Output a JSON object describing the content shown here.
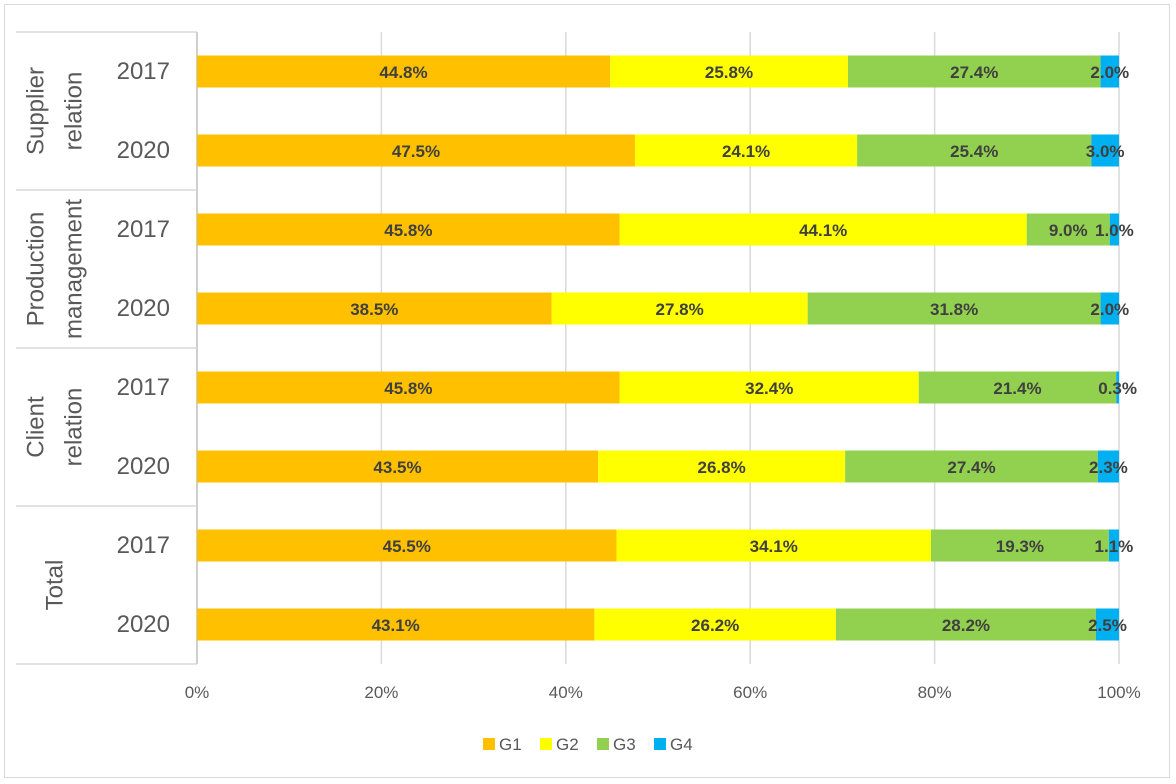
{
  "chart_data": {
    "type": "bar",
    "orientation": "horizontal",
    "stacked": "percent",
    "title": "",
    "xlabel": "",
    "ylabel": "",
    "xlim": [
      0,
      100
    ],
    "x_ticks": [
      "0%",
      "20%",
      "40%",
      "60%",
      "80%",
      "100%"
    ],
    "grid": true,
    "legend_position": "bottom",
    "groups": [
      {
        "name": "Supplier relation",
        "lines": [
          "Supplier",
          "relation"
        ],
        "categories": [
          "2017",
          "2020"
        ]
      },
      {
        "name": "Production management",
        "lines": [
          "Production",
          "management"
        ],
        "categories": [
          "2017",
          "2020"
        ]
      },
      {
        "name": "Client relation",
        "lines": [
          "Client",
          "relation"
        ],
        "categories": [
          "2017",
          "2020"
        ]
      },
      {
        "name": "Total",
        "lines": [
          "Total"
        ],
        "categories": [
          "2017",
          "2020"
        ]
      }
    ],
    "series": [
      {
        "name": "G1",
        "color": "#FFC000",
        "values": [
          44.8,
          47.5,
          45.8,
          38.5,
          45.8,
          43.5,
          45.5,
          43.1
        ]
      },
      {
        "name": "G2",
        "color": "#FFFF00",
        "values": [
          25.8,
          24.1,
          44.1,
          27.8,
          32.4,
          26.8,
          34.1,
          26.2
        ]
      },
      {
        "name": "G3",
        "color": "#92D050",
        "values": [
          27.4,
          25.4,
          9.0,
          31.8,
          21.4,
          27.4,
          19.3,
          28.2
        ]
      },
      {
        "name": "G4",
        "color": "#00B0F0",
        "values": [
          2.0,
          3.0,
          1.0,
          2.0,
          0.3,
          2.3,
          1.1,
          2.5
        ]
      }
    ]
  }
}
